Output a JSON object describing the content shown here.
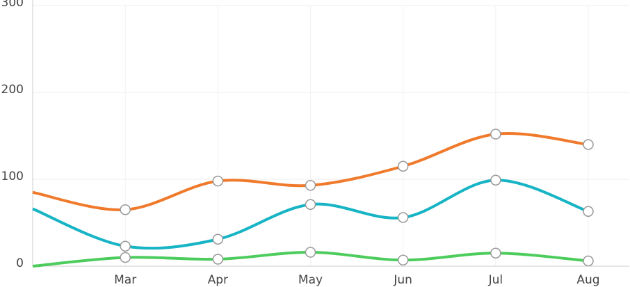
{
  "chart_data": {
    "type": "line",
    "categories": [
      null,
      "Mar",
      "Apr",
      "May",
      "Jun",
      "Jul",
      "Aug"
    ],
    "series": [
      {
        "color": "#f07a2c",
        "values": [
          85,
          65,
          98,
          93,
          115,
          152,
          140
        ]
      },
      {
        "color": "#16b4c4",
        "values": [
          66,
          23,
          31,
          71,
          56,
          99,
          63
        ]
      },
      {
        "color": "#4ccc5c",
        "values": [
          0,
          10,
          8,
          16,
          7,
          15,
          6
        ]
      }
    ],
    "ylim": [
      0,
      300
    ],
    "yticks": [
      0,
      100,
      200,
      300
    ],
    "grid": true
  }
}
